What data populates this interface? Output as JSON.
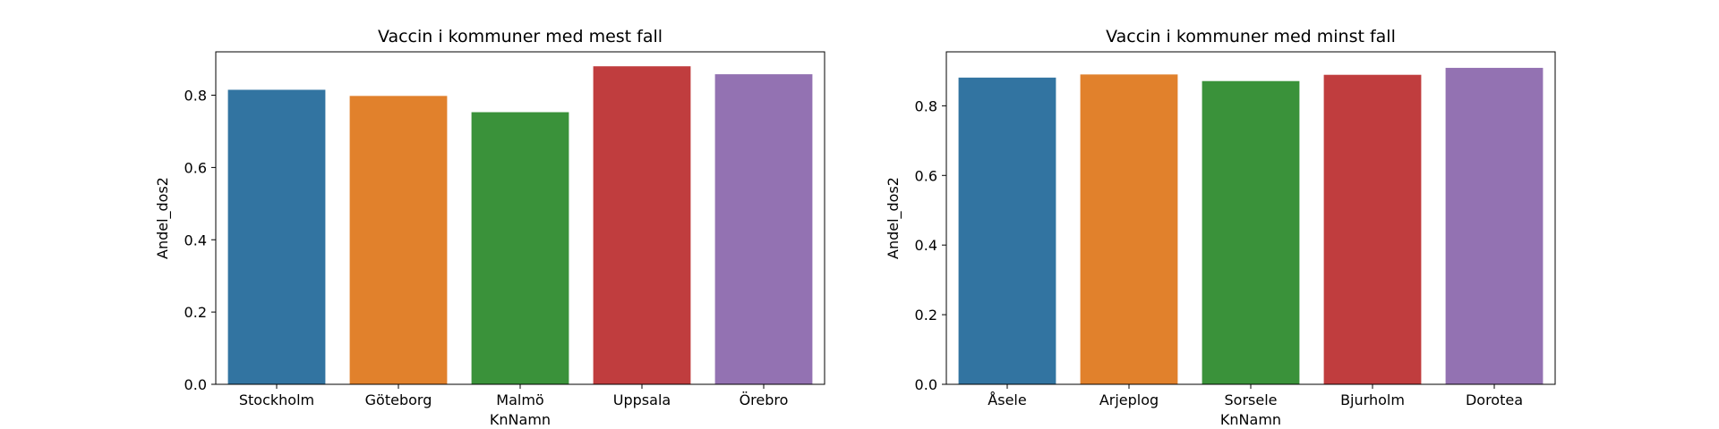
{
  "chart_data": [
    {
      "type": "bar",
      "title": "Vaccin i kommuner med mest fall",
      "xlabel": "KnNamn",
      "ylabel": "Andel_dos2",
      "categories": [
        "Stockholm",
        "Göteborg",
        "Malmö",
        "Uppsala",
        "Örebro"
      ],
      "values": [
        0.815,
        0.798,
        0.753,
        0.88,
        0.858
      ],
      "ylim": [
        0,
        0.92
      ],
      "yticks": [
        0.0,
        0.2,
        0.4,
        0.6,
        0.8
      ],
      "ytick_labels": [
        "0.0",
        "0.2",
        "0.4",
        "0.6",
        "0.8"
      ],
      "colors": [
        "#3274a1",
        "#e1812c",
        "#3a923a",
        "#c03d3e",
        "#9372b2"
      ],
      "grid": false,
      "legend": "none"
    },
    {
      "type": "bar",
      "title": "Vaccin i kommuner med minst fall",
      "xlabel": "KnNamn",
      "ylabel": "Andel_dos2",
      "categories": [
        "Åsele",
        "Arjeplog",
        "Sorsele",
        "Bjurholm",
        "Dorotea"
      ],
      "values": [
        0.881,
        0.89,
        0.871,
        0.889,
        0.909
      ],
      "ylim": [
        0,
        0.955
      ],
      "yticks": [
        0.0,
        0.2,
        0.4,
        0.6,
        0.8
      ],
      "ytick_labels": [
        "0.0",
        "0.2",
        "0.4",
        "0.6",
        "0.8"
      ],
      "colors": [
        "#3274a1",
        "#e1812c",
        "#3a923a",
        "#c03d3e",
        "#9372b2"
      ],
      "grid": false,
      "legend": "none"
    }
  ]
}
